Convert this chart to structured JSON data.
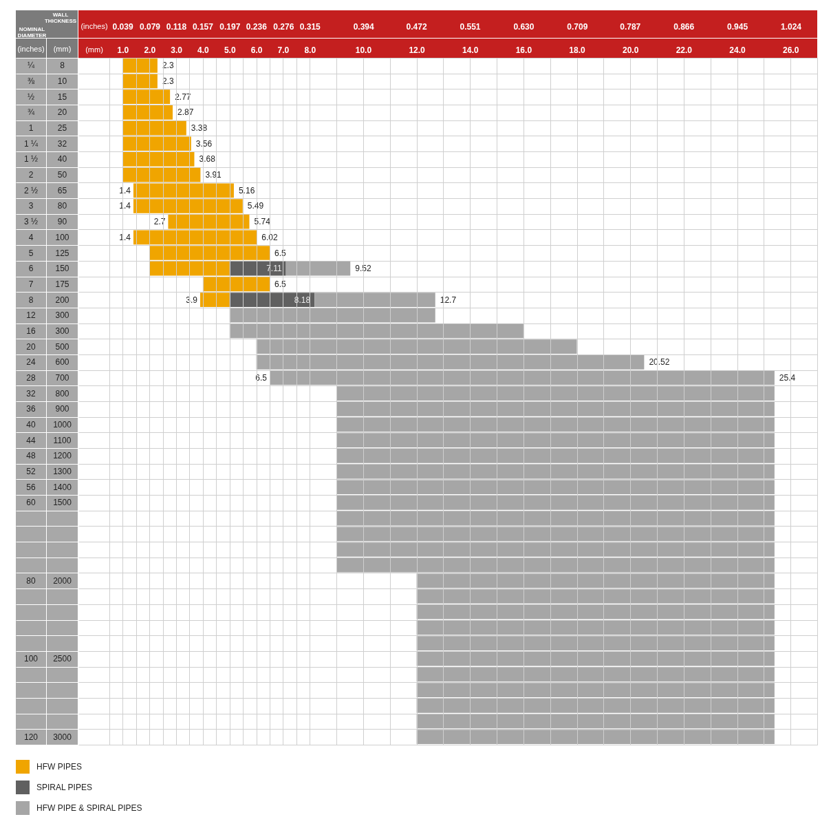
{
  "chart_data": {
    "type": "bar",
    "orientation": "horizontal",
    "xlabel": "(mm)",
    "x2label": "(inches)",
    "ylabel": "(inches)",
    "y2label": "(mm)",
    "annotations": [
      "WALL THICKNESS",
      "NOMINAL DIAMETER",
      {
        "text": "2.3",
        "x": 2.3,
        "y": "¼"
      },
      {
        "text": "2.3",
        "x": 2.3,
        "y": "⅜"
      },
      {
        "text": "2.77",
        "x": 2.77,
        "y": "½"
      },
      {
        "text": "2.87",
        "x": 2.87,
        "y": "¾"
      },
      {
        "text": "3.38",
        "x": 3.38,
        "y": "1"
      },
      {
        "text": "3.56",
        "x": 3.56,
        "y": "1 ¼"
      },
      {
        "text": "3.68",
        "x": 3.68,
        "y": "1 ½"
      },
      {
        "text": "3.91",
        "x": 3.91,
        "y": "2"
      },
      {
        "text": "1.4",
        "x": 1.4,
        "y": "2 ½"
      },
      {
        "text": "5.16",
        "x": 5.16,
        "y": "2 ½"
      },
      {
        "text": "1.4",
        "x": 1.4,
        "y": "3"
      },
      {
        "text": "5.49",
        "x": 5.49,
        "y": "3"
      },
      {
        "text": "2.7",
        "x": 2.7,
        "y": "3 ½"
      },
      {
        "text": "5.74",
        "x": 5.74,
        "y": "3 ½"
      },
      {
        "text": "1.4",
        "x": 1.4,
        "y": "4"
      },
      {
        "text": "6.02",
        "x": 6.02,
        "y": "4"
      },
      {
        "text": "6.5",
        "x": 6.5,
        "y": "5"
      },
      {
        "text": "7.11",
        "x": 7.11,
        "y": "6"
      },
      {
        "text": "9.52",
        "x": 9.52,
        "y": "6"
      },
      {
        "text": "6.5",
        "x": 6.5,
        "y": "7"
      },
      {
        "text": "3.9",
        "x": 3.9,
        "y": "8"
      },
      {
        "text": "8.18",
        "x": 8.18,
        "y": "8"
      },
      {
        "text": "12.7",
        "x": 12.7,
        "y": "8"
      },
      {
        "text": "20.52",
        "x": 20.52,
        "y": "24"
      },
      {
        "text": "6.5",
        "x": 6.5,
        "y": "28"
      },
      {
        "text": "25.4",
        "x": 25.4,
        "y": "28"
      }
    ],
    "categories": [
      "¼",
      "⅜",
      "½",
      "¾",
      "1",
      "1 ¼",
      "1 ½",
      "2",
      "2 ½",
      "3",
      "3 ½",
      "4",
      "5",
      "6",
      "7",
      "8",
      "12",
      "16",
      "20",
      "24",
      "28",
      "32",
      "36",
      "40",
      "44",
      "48",
      "52",
      "56",
      "60",
      null,
      null,
      null,
      null,
      "80",
      null,
      null,
      null,
      null,
      "100",
      null,
      null,
      null,
      null,
      "120"
    ],
    "y2_categories": [
      "8",
      "10",
      "15",
      "20",
      "25",
      "32",
      "40",
      "50",
      "65",
      "80",
      "90",
      "100",
      "125",
      "150",
      "175",
      "200",
      "300",
      "300",
      "500",
      "600",
      "700",
      "800",
      "900",
      "1000",
      "1100",
      "1200",
      "1300",
      "1400",
      "1500",
      null,
      null,
      null,
      null,
      "2000",
      null,
      null,
      null,
      null,
      "2500",
      null,
      null,
      null,
      null,
      "3000"
    ],
    "xlim": [
      0.5,
      27
    ],
    "xticks": [
      {
        "value": 0.5,
        "label": null
      },
      {
        "value": 1,
        "label": "1.0"
      },
      {
        "value": 1.5,
        "label": null
      },
      {
        "value": 2,
        "label": "2.0"
      },
      {
        "value": 2.5,
        "label": null
      },
      {
        "value": 3,
        "label": "3.0"
      },
      {
        "value": 3.5,
        "label": null
      },
      {
        "value": 4,
        "label": "4.0"
      },
      {
        "value": 4.5,
        "label": null
      },
      {
        "value": 5,
        "label": "5.0"
      },
      {
        "value": 5.5,
        "label": null
      },
      {
        "value": 6,
        "label": "6.0"
      },
      {
        "value": 6.5,
        "label": null
      },
      {
        "value": 7,
        "label": "7.0"
      },
      {
        "value": 7.5,
        "label": null
      },
      {
        "value": 8,
        "label": "8.0"
      },
      {
        "value": 9,
        "label": null
      },
      {
        "value": 10,
        "label": "10.0"
      },
      {
        "value": 11,
        "label": null
      },
      {
        "value": 12,
        "label": "12.0"
      },
      {
        "value": 13,
        "label": null
      },
      {
        "value": 14,
        "label": "14.0"
      },
      {
        "value": 15,
        "label": null
      },
      {
        "value": 16,
        "label": "16.0"
      },
      {
        "value": 17,
        "label": null
      },
      {
        "value": 18,
        "label": "18.0"
      },
      {
        "value": 19,
        "label": null
      },
      {
        "value": 20,
        "label": "20.0"
      },
      {
        "value": 21,
        "label": null
      },
      {
        "value": 22,
        "label": "22.0"
      },
      {
        "value": 23,
        "label": null
      },
      {
        "value": 24,
        "label": "24.0"
      },
      {
        "value": 25,
        "label": null
      },
      {
        "value": 26,
        "label": "26.0"
      },
      {
        "value": 27,
        "label": null
      }
    ],
    "x2lim": [
      0.0197,
      1.063
    ],
    "x2ticks": [
      0.039,
      0.079,
      0.118,
      0.157,
      0.197,
      0.236,
      0.276,
      0.315,
      0.394,
      0.472,
      0.551,
      {
        "value": 0.63,
        "label": "0.630"
      },
      0.709,
      0.787,
      0.866,
      0.945,
      1.024
    ],
    "grid": true,
    "legend": "bottom left",
    "series": [
      {
        "name": "HFW PIPES",
        "color": "#f0a500",
        "base": [
          1,
          1,
          1,
          1,
          1,
          1,
          1,
          1,
          1.4,
          1.4,
          2.7,
          1.4,
          2,
          2,
          4,
          3.9,
          null,
          null,
          null,
          null,
          null,
          null,
          null,
          null,
          null,
          null,
          null,
          null,
          null,
          null,
          null,
          null,
          null,
          null,
          null,
          null,
          null,
          null,
          null,
          null,
          null,
          null,
          null,
          null
        ],
        "values": [
          1.3,
          1.3,
          1.77,
          1.87,
          2.38,
          2.56,
          2.68,
          2.91,
          3.76,
          4.09,
          3.04,
          4.62,
          4.5,
          3,
          2.5,
          1.1,
          null,
          null,
          null,
          null,
          null,
          null,
          null,
          null,
          null,
          null,
          null,
          null,
          null,
          null,
          null,
          null,
          null,
          null,
          null,
          null,
          null,
          null,
          null,
          null,
          null,
          null,
          null,
          null
        ]
      },
      {
        "name": "SPIRAL PIPES",
        "color": "#606060",
        "base": [
          null,
          null,
          null,
          null,
          null,
          null,
          null,
          null,
          null,
          null,
          null,
          null,
          null,
          5,
          null,
          5,
          null,
          null,
          null,
          null,
          null,
          null,
          null,
          null,
          null,
          null,
          null,
          null,
          null,
          null,
          null,
          null,
          null,
          null,
          null,
          null,
          null,
          null,
          null,
          null,
          null,
          null,
          null,
          null
        ],
        "values": [
          null,
          null,
          null,
          null,
          null,
          null,
          null,
          null,
          null,
          null,
          null,
          null,
          null,
          2.11,
          null,
          3.18,
          null,
          null,
          null,
          null,
          null,
          null,
          null,
          null,
          null,
          null,
          null,
          null,
          null,
          null,
          null,
          null,
          null,
          null,
          null,
          null,
          null,
          null,
          null,
          null,
          null,
          null,
          null,
          null
        ]
      },
      {
        "name": "HFW PIPE & SPIRAL PIPES",
        "color": "#a6a6a6",
        "base": [
          null,
          null,
          null,
          null,
          null,
          null,
          null,
          null,
          null,
          null,
          null,
          null,
          null,
          7.11,
          null,
          8.18,
          5,
          5,
          6,
          6,
          6.5,
          9,
          9,
          9,
          9,
          9,
          9,
          9,
          9,
          9,
          9,
          9,
          9,
          12,
          12,
          12,
          12,
          12,
          12,
          12,
          12,
          12,
          12,
          12
        ],
        "values": [
          null,
          null,
          null,
          null,
          null,
          null,
          null,
          null,
          null,
          null,
          null,
          null,
          null,
          2.41,
          null,
          4.52,
          7.7,
          11,
          12,
          14.52,
          18.9,
          16.4,
          16.4,
          16.4,
          16.4,
          16.4,
          16.4,
          16.4,
          16.4,
          16.4,
          16.4,
          16.4,
          16.4,
          13.4,
          13.4,
          13.4,
          13.4,
          13.4,
          13.4,
          13.4,
          13.4,
          13.4,
          13.4,
          13.4
        ]
      }
    ]
  }
}
